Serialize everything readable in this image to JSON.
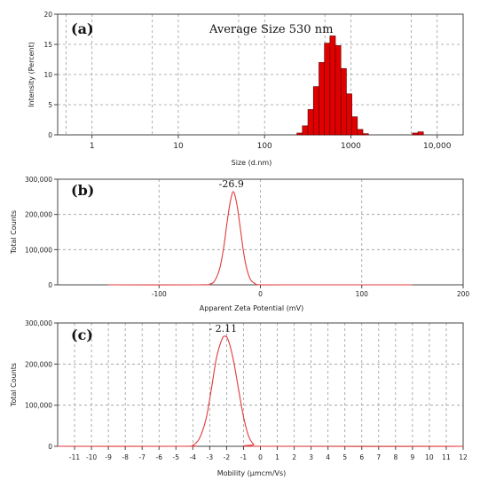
{
  "chart_data": [
    {
      "panel": "(a)",
      "type": "bar",
      "annotation": "Average Size 530 nm",
      "xlabel": "Size (d.nm)",
      "ylabel": "Intensity (Percent)",
      "xscale": "log",
      "xlim": [
        0.4,
        20000
      ],
      "ylim": [
        0,
        20
      ],
      "grid": true,
      "x_tick_labels": [
        "1",
        "10",
        "100",
        "1000",
        "10,000"
      ],
      "x_tick_values": [
        1,
        10,
        100,
        1000,
        10000
      ],
      "y_tick_labels": [
        "0",
        "5",
        "10",
        "15",
        "20"
      ],
      "y_tick_values": [
        0,
        5,
        10,
        15,
        20
      ],
      "bar_color": "#e00000",
      "bins": [
        {
          "x": 255,
          "value": 0.3
        },
        {
          "x": 295,
          "value": 1.5
        },
        {
          "x": 342,
          "value": 4.2
        },
        {
          "x": 396,
          "value": 8.0
        },
        {
          "x": 459,
          "value": 12.0
        },
        {
          "x": 531,
          "value": 15.2
        },
        {
          "x": 615,
          "value": 16.4
        },
        {
          "x": 712,
          "value": 14.8
        },
        {
          "x": 825,
          "value": 11.0
        },
        {
          "x": 955,
          "value": 6.8
        },
        {
          "x": 1106,
          "value": 3.0
        },
        {
          "x": 1281,
          "value": 0.9
        },
        {
          "x": 1484,
          "value": 0.2
        },
        {
          "x": 5560,
          "value": 0.3
        },
        {
          "x": 6439,
          "value": 0.5
        }
      ]
    },
    {
      "panel": "(b)",
      "type": "line",
      "peak_label": "-26.9",
      "xlabel": "Apparent Zeta Potential (mV)",
      "ylabel": "Total Counts",
      "xlim": [
        -200,
        200
      ],
      "ylim": [
        0,
        300000
      ],
      "grid": true,
      "x_tick_labels": [
        "-100",
        "0",
        "100",
        "200"
      ],
      "x_tick_values": [
        -100,
        0,
        100,
        200
      ],
      "y_tick_labels": [
        "0",
        "100,000",
        "200,000",
        "300,000"
      ],
      "y_tick_values": [
        0,
        100000,
        200000,
        300000
      ],
      "series_color": "#e03a3a",
      "series": [
        {
          "x": [
            -150,
            -60,
            -50,
            -45,
            -40,
            -36,
            -33,
            -30,
            -28,
            -26.9,
            -25.5,
            -23,
            -20,
            -17,
            -14,
            -10,
            -5,
            0,
            20,
            150
          ],
          "y": [
            0,
            0,
            2000,
            12000,
            48000,
            110000,
            175000,
            232000,
            258000,
            265000,
            258000,
            225000,
            165000,
            100000,
            52000,
            16000,
            3000,
            0,
            0,
            0
          ]
        }
      ]
    },
    {
      "panel": "(c)",
      "type": "line",
      "peak_label": "- 2.11",
      "xlabel": "Mobility (µmcm/Vs)",
      "ylabel": "Total Counts",
      "xlim": [
        -12,
        12
      ],
      "ylim": [
        0,
        300000
      ],
      "grid": true,
      "x_tick_labels": [
        "-11",
        "-10",
        "-9",
        "-8",
        "-7",
        "-6",
        "-5",
        "-4",
        "-3",
        "-2",
        "-1",
        "0",
        "1",
        "2",
        "3",
        "4",
        "5",
        "6",
        "7",
        "8",
        "9",
        "10",
        "11",
        "12"
      ],
      "x_tick_values": [
        -11,
        -10,
        -9,
        -8,
        -7,
        -6,
        -5,
        -4,
        -3,
        -2,
        -1,
        0,
        1,
        2,
        3,
        4,
        5,
        6,
        7,
        8,
        9,
        10,
        11,
        12
      ],
      "y_tick_labels": [
        "0",
        "100,000",
        "200,000",
        "300,000"
      ],
      "y_tick_values": [
        0,
        100000,
        200000,
        300000
      ],
      "series_color": "#e03a3a",
      "series": [
        {
          "x": [
            -12,
            -4.5,
            -4.0,
            -3.6,
            -3.2,
            -2.9,
            -2.6,
            -2.3,
            -2.11,
            -1.9,
            -1.6,
            -1.3,
            -1.0,
            -0.7,
            -0.4,
            0.0,
            12
          ],
          "y": [
            0,
            0,
            3000,
            20000,
            70000,
            140000,
            215000,
            258000,
            268000,
            258000,
            210000,
            140000,
            72000,
            25000,
            5000,
            0,
            0
          ]
        }
      ]
    }
  ]
}
